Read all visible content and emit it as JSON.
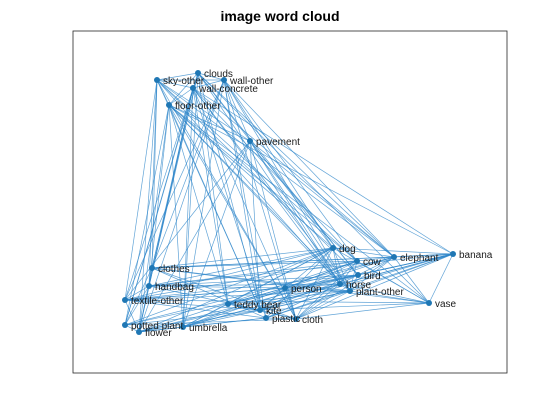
{
  "figure": {
    "title": "image word cloud"
  },
  "colors": {
    "edge": "#2e86c9",
    "node": "#1f77b4",
    "axes": "#262626",
    "background": "#ffffff"
  },
  "graph": {
    "nodes": [
      {
        "id": "clouds",
        "label": "clouds"
      },
      {
        "id": "sky-other",
        "label": "sky-other"
      },
      {
        "id": "wall-other",
        "label": "wall-other"
      },
      {
        "id": "wall-concrete",
        "label": "wall-concrete"
      },
      {
        "id": "floor-other",
        "label": "floor-other"
      },
      {
        "id": "pavement",
        "label": "pavement"
      },
      {
        "id": "dog",
        "label": "dog"
      },
      {
        "id": "cow",
        "label": "cow"
      },
      {
        "id": "elephant",
        "label": "elephant"
      },
      {
        "id": "banana",
        "label": "banana"
      },
      {
        "id": "bird",
        "label": "bird"
      },
      {
        "id": "horse",
        "label": "horse"
      },
      {
        "id": "plant-other",
        "label": "plant-other"
      },
      {
        "id": "vase",
        "label": "vase"
      },
      {
        "id": "clothes",
        "label": "clothes"
      },
      {
        "id": "handbag",
        "label": "handbag"
      },
      {
        "id": "person",
        "label": "person"
      },
      {
        "id": "textile-other",
        "label": "textile-other"
      },
      {
        "id": "teddy bear",
        "label": "teddy bear"
      },
      {
        "id": "kite",
        "label": "kite"
      },
      {
        "id": "plastic",
        "label": "plastic"
      },
      {
        "id": "cloth",
        "label": "cloth"
      },
      {
        "id": "potted plant",
        "label": "potted plant"
      },
      {
        "id": "umbrella",
        "label": "umbrella"
      },
      {
        "id": "flower",
        "label": "flower"
      }
    ]
  }
}
